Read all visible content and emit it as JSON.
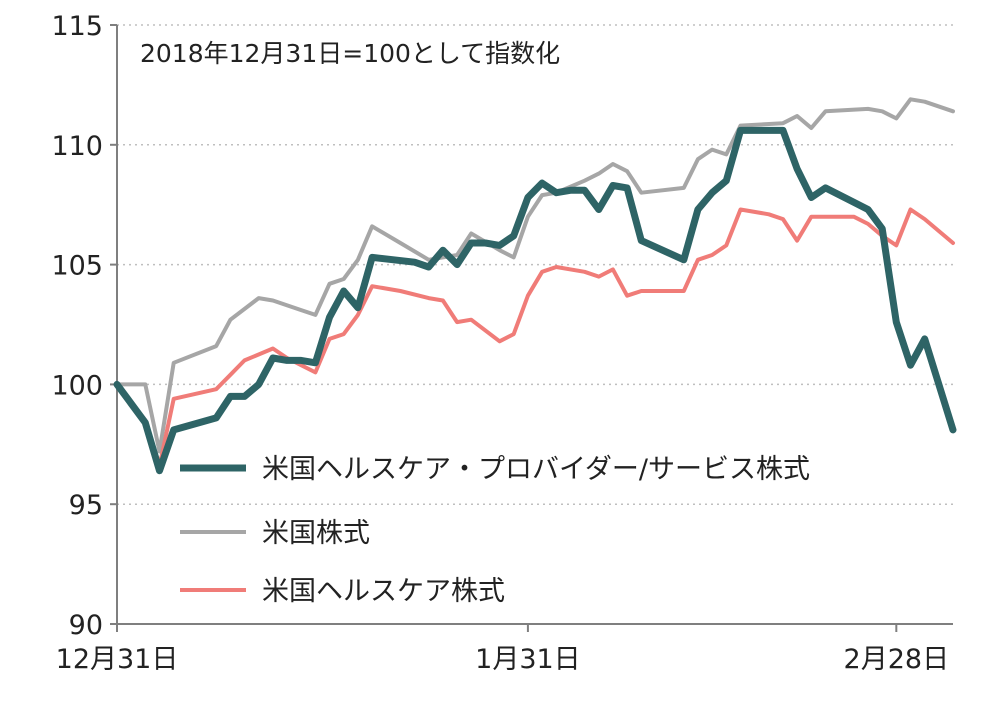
{
  "chart_data": {
    "type": "line",
    "annotation": "2018年12月31日=100として指数化",
    "y_ticks": [
      "115",
      "110",
      "105",
      "100",
      "95",
      "90"
    ],
    "y_tick_values": [
      115,
      110,
      105,
      100,
      95,
      90
    ],
    "ylim": [
      90,
      115
    ],
    "xlim": [
      0,
      59
    ],
    "x_ticks": [
      {
        "label": "12月31日",
        "x": 0
      },
      {
        "label": "1月31日",
        "x": 29
      },
      {
        "label": "2月28日",
        "x": 55
      }
    ],
    "grid": "horizontal-dotted",
    "legend_position": "lower-right",
    "series": [
      {
        "name": "米国ヘルスケア・プロバイダー/サービス株式",
        "color": "#2e6466",
        "points": [
          [
            0,
            100.0
          ],
          [
            2,
            98.4
          ],
          [
            3,
            96.4
          ],
          [
            4,
            98.1
          ],
          [
            7,
            98.6
          ],
          [
            8,
            99.5
          ],
          [
            9,
            99.5
          ],
          [
            10,
            100.0
          ],
          [
            11,
            101.1
          ],
          [
            12,
            101.0
          ],
          [
            13,
            101.0
          ],
          [
            14,
            100.9
          ],
          [
            15,
            102.8
          ],
          [
            16,
            103.9
          ],
          [
            17,
            103.2
          ],
          [
            18,
            105.3
          ],
          [
            21,
            105.1
          ],
          [
            22,
            104.9
          ],
          [
            23,
            105.6
          ],
          [
            24,
            105.0
          ],
          [
            25,
            105.9
          ],
          [
            26,
            105.9
          ],
          [
            27,
            105.8
          ],
          [
            28,
            106.2
          ],
          [
            29,
            107.8
          ],
          [
            30,
            108.4
          ],
          [
            31,
            108.0
          ],
          [
            32,
            108.1
          ],
          [
            33,
            108.1
          ],
          [
            34,
            107.3
          ],
          [
            35,
            108.3
          ],
          [
            36,
            108.2
          ],
          [
            37,
            106.0
          ],
          [
            40,
            105.2
          ],
          [
            41,
            107.3
          ],
          [
            42,
            108.0
          ],
          [
            43,
            108.5
          ],
          [
            44,
            110.6
          ],
          [
            47,
            110.6
          ],
          [
            48,
            109.0
          ],
          [
            49,
            107.8
          ],
          [
            50,
            108.2
          ],
          [
            52,
            107.6
          ],
          [
            53,
            107.3
          ],
          [
            54,
            106.5
          ],
          [
            55,
            102.6
          ],
          [
            56,
            100.8
          ],
          [
            57,
            101.9
          ],
          [
            59,
            98.1
          ]
        ]
      },
      {
        "name": "米国株式",
        "color": "#a6a6a6",
        "points": [
          [
            0,
            100.0
          ],
          [
            2,
            100.0
          ],
          [
            3,
            97.2
          ],
          [
            4,
            100.9
          ],
          [
            7,
            101.6
          ],
          [
            8,
            102.7
          ],
          [
            10,
            103.6
          ],
          [
            11,
            103.5
          ],
          [
            13,
            103.1
          ],
          [
            14,
            102.9
          ],
          [
            15,
            104.2
          ],
          [
            16,
            104.4
          ],
          [
            17,
            105.2
          ],
          [
            18,
            106.6
          ],
          [
            20,
            105.9
          ],
          [
            22,
            105.2
          ],
          [
            23,
            105.3
          ],
          [
            24,
            105.4
          ],
          [
            25,
            106.3
          ],
          [
            27,
            105.6
          ],
          [
            28,
            105.3
          ],
          [
            29,
            107.0
          ],
          [
            30,
            107.9
          ],
          [
            31,
            108.0
          ],
          [
            33,
            108.5
          ],
          [
            34,
            108.8
          ],
          [
            35,
            109.2
          ],
          [
            36,
            108.9
          ],
          [
            37,
            108.0
          ],
          [
            40,
            108.2
          ],
          [
            41,
            109.4
          ],
          [
            42,
            109.8
          ],
          [
            43,
            109.6
          ],
          [
            44,
            110.8
          ],
          [
            47,
            110.9
          ],
          [
            48,
            111.2
          ],
          [
            49,
            110.7
          ],
          [
            50,
            111.4
          ],
          [
            53,
            111.5
          ],
          [
            54,
            111.4
          ],
          [
            55,
            111.1
          ],
          [
            56,
            111.9
          ],
          [
            57,
            111.8
          ],
          [
            59,
            111.4
          ]
        ]
      },
      {
        "name": "米国ヘルスケア株式",
        "color": "#f07c78",
        "points": [
          [
            0,
            100.0
          ],
          [
            2,
            98.5
          ],
          [
            3,
            96.6
          ],
          [
            4,
            99.4
          ],
          [
            7,
            99.8
          ],
          [
            8,
            100.4
          ],
          [
            9,
            101.0
          ],
          [
            11,
            101.5
          ],
          [
            12,
            101.1
          ],
          [
            13,
            100.8
          ],
          [
            14,
            100.5
          ],
          [
            15,
            101.9
          ],
          [
            16,
            102.1
          ],
          [
            17,
            102.9
          ],
          [
            18,
            104.1
          ],
          [
            20,
            103.9
          ],
          [
            22,
            103.6
          ],
          [
            23,
            103.5
          ],
          [
            24,
            102.6
          ],
          [
            25,
            102.7
          ],
          [
            27,
            101.8
          ],
          [
            28,
            102.1
          ],
          [
            29,
            103.7
          ],
          [
            30,
            104.7
          ],
          [
            31,
            104.9
          ],
          [
            33,
            104.7
          ],
          [
            34,
            104.5
          ],
          [
            35,
            104.8
          ],
          [
            36,
            103.7
          ],
          [
            37,
            103.9
          ],
          [
            40,
            103.9
          ],
          [
            41,
            105.2
          ],
          [
            42,
            105.4
          ],
          [
            43,
            105.8
          ],
          [
            44,
            107.3
          ],
          [
            46,
            107.1
          ],
          [
            47,
            106.9
          ],
          [
            48,
            106.0
          ],
          [
            49,
            107.0
          ],
          [
            52,
            107.0
          ],
          [
            53,
            106.7
          ],
          [
            54,
            106.2
          ],
          [
            55,
            105.8
          ],
          [
            56,
            107.3
          ],
          [
            57,
            106.9
          ],
          [
            59,
            105.9
          ]
        ]
      }
    ]
  }
}
